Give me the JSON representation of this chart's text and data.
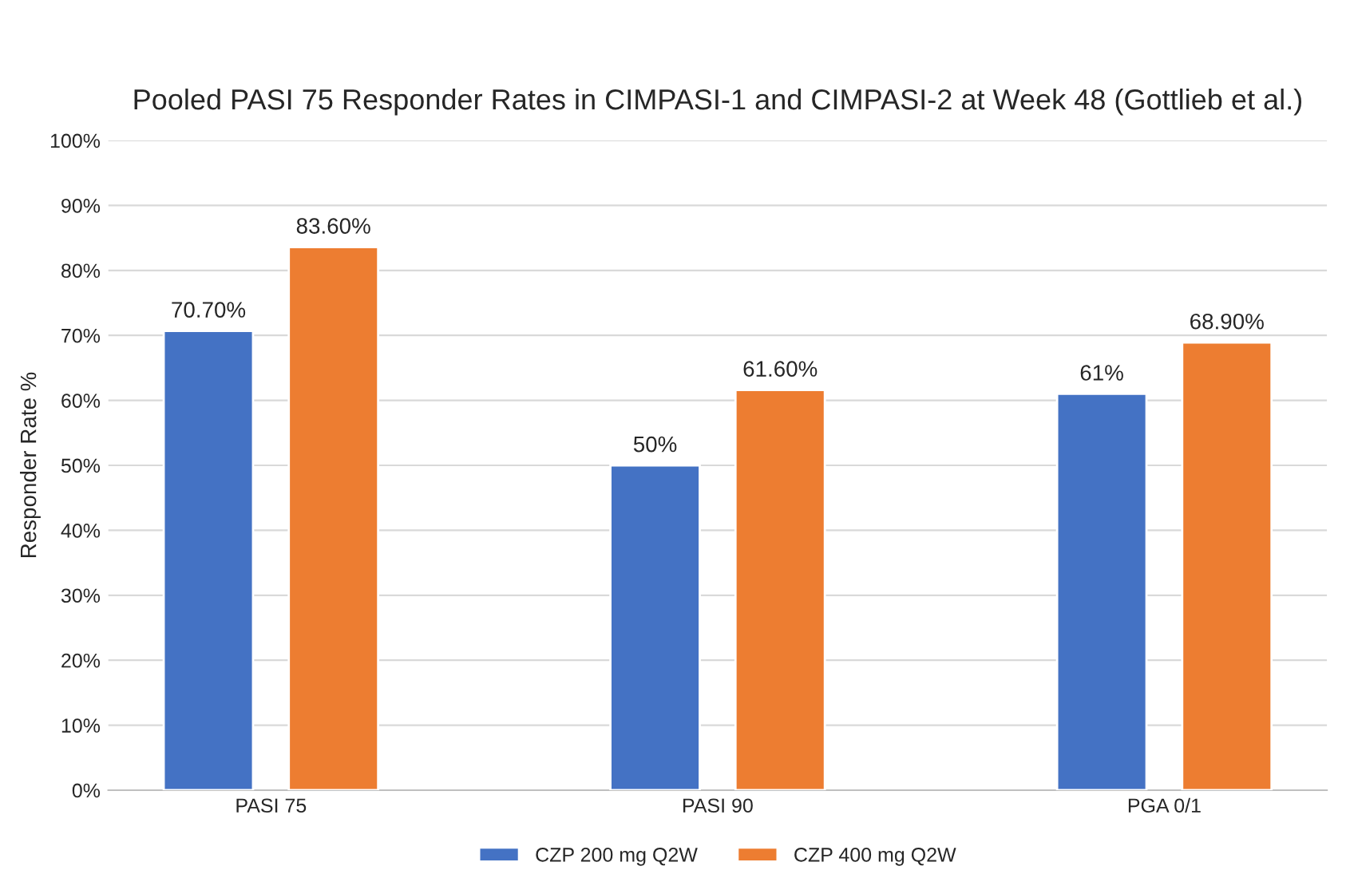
{
  "chart_data": {
    "type": "bar",
    "title": "Pooled PASI 75 Responder Rates in CIMPASI-1 and CIMPASI-2 at Week 48 (Gottlieb et al.)",
    "ylabel": "Responder Rate %",
    "categories": [
      "PASI 75",
      "PASI 90",
      "PGA 0/1"
    ],
    "series": [
      {
        "name": "CZP 200 mg Q2W",
        "color": "#4472c4",
        "values": [
          70.7,
          50,
          61
        ],
        "value_labels": [
          "70.70%",
          "50%",
          "61%"
        ]
      },
      {
        "name": "CZP 400 mg Q2W",
        "color": "#ed7d31",
        "values": [
          83.6,
          61.6,
          68.9
        ],
        "value_labels": [
          "83.60%",
          "61.60%",
          "68.90%"
        ]
      }
    ],
    "ylim": [
      0,
      100
    ],
    "yticks": [
      {
        "value": 0,
        "label": "0%"
      },
      {
        "value": 10,
        "label": "10%"
      },
      {
        "value": 20,
        "label": "20%"
      },
      {
        "value": 30,
        "label": "30%"
      },
      {
        "value": 40,
        "label": "40%"
      },
      {
        "value": 50,
        "label": "50%"
      },
      {
        "value": 60,
        "label": "60%"
      },
      {
        "value": 70,
        "label": "70%"
      },
      {
        "value": 80,
        "label": "80%"
      },
      {
        "value": 90,
        "label": "90%"
      },
      {
        "value": 100,
        "label": "100%"
      }
    ],
    "grid": "y",
    "legend": "bottom"
  }
}
